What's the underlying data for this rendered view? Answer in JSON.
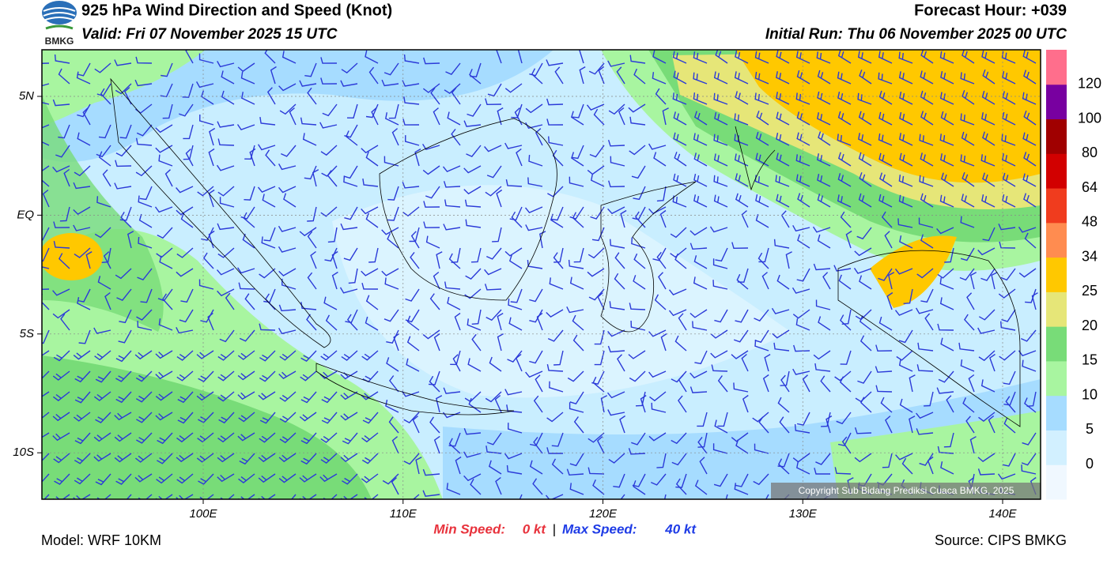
{
  "logo": "BMKG",
  "header": {
    "title": "925 hPa Wind Direction and Speed (Knot)",
    "valid": "Valid: Fri 07 November 2025 15 UTC",
    "forecast_hour": "Forecast Hour: +039",
    "initial_run": "Initial Run: Thu 06 November 2025 00 UTC"
  },
  "map": {
    "lon_labels": [
      "100E",
      "110E",
      "120E",
      "130E",
      "140E"
    ],
    "lat_labels": [
      "5N",
      "EQ",
      "5S",
      "10S"
    ],
    "copyright": "Copyright Sub Bidang Prediksi Cuaca BMKG, 2025"
  },
  "legend": {
    "labels": [
      "0",
      "5",
      "10",
      "15",
      "20",
      "25",
      "34",
      "48",
      "64",
      "80",
      "100",
      "120"
    ],
    "colors": [
      "#f0f8ff",
      "#d2f0ff",
      "#a6dcff",
      "#a8f5a0",
      "#78dc78",
      "#e6e678",
      "#ffc800",
      "#ff8c50",
      "#f03c1e",
      "#d20000",
      "#a00000",
      "#7800a0",
      "#ff6e8c"
    ]
  },
  "footer": {
    "model": "Model: WRF 10KM",
    "min_label": "Min Speed:",
    "min_value": "0 kt",
    "separator": "|",
    "max_label": "Max Speed:",
    "max_value": "40 kt",
    "source": "Source: CIPS BMKG"
  }
}
